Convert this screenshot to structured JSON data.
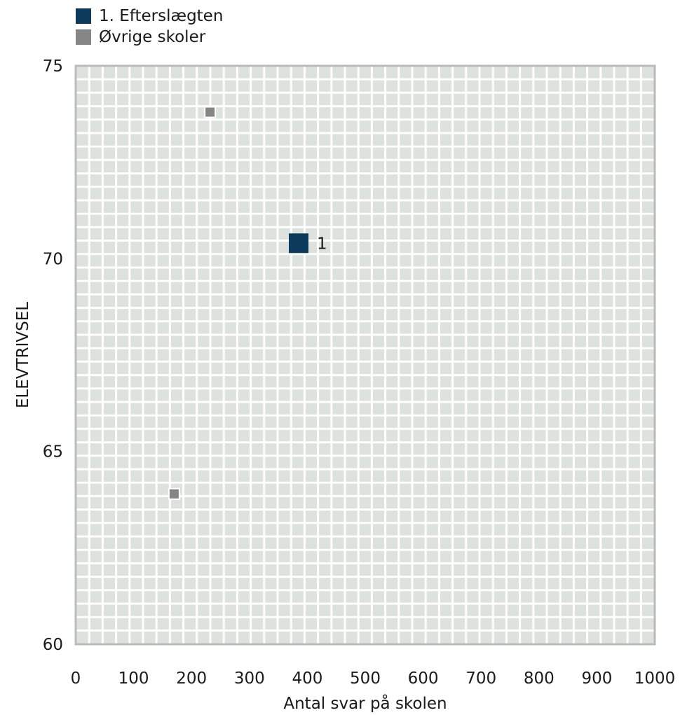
{
  "legend": {
    "items": [
      {
        "label": "1. Efterslægten",
        "color": "#0b3a5a"
      },
      {
        "label": "Øvrige skoler",
        "color": "#858585"
      }
    ]
  },
  "chart_data": {
    "type": "scatter",
    "xlabel": "Antal svar på skolen",
    "ylabel": "ELEVTRIVSEL",
    "xlim": [
      0,
      1000
    ],
    "ylim": [
      60,
      75
    ],
    "x_ticks": [
      0,
      100,
      200,
      300,
      400,
      500,
      600,
      700,
      800,
      900,
      1000
    ],
    "y_ticks": [
      60,
      65,
      70,
      75
    ],
    "grid": true,
    "legend_position": "top-left",
    "series": [
      {
        "name": "1. Efterslægten",
        "color": "#0b3a5a",
        "points": [
          {
            "x": 385,
            "y": 70.4,
            "label": "1"
          }
        ]
      },
      {
        "name": "Øvrige skoler",
        "color": "#858585",
        "points": [
          {
            "x": 232,
            "y": 73.8
          },
          {
            "x": 170,
            "y": 63.9
          }
        ]
      }
    ]
  }
}
